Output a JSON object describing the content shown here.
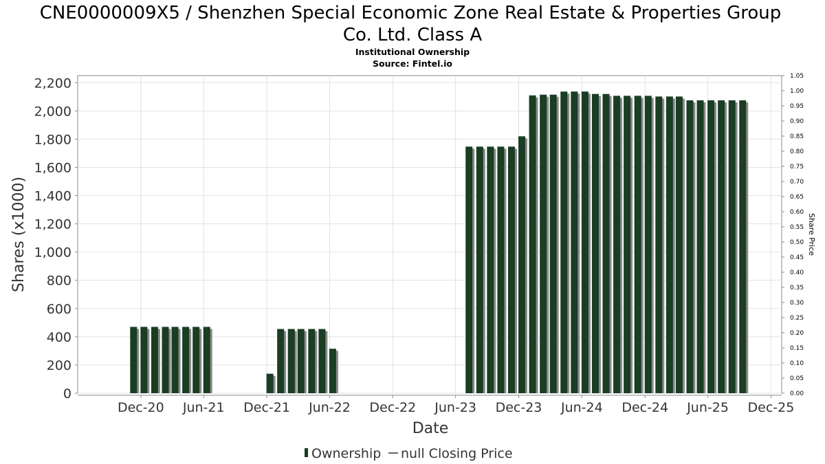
{
  "chart_data": {
    "type": "bar",
    "title_line1": "CNE0000009X5 / Shenzhen Special Economic Zone Real Estate & Properties Group",
    "title_line2": "Co. Ltd. Class A",
    "subtitle": "Institutional Ownership",
    "source": "Source: Fintel.io",
    "xlabel": "Date",
    "ylabel": "Shares (x1000)",
    "y2label": "Share Price",
    "ylim": [
      0,
      2250
    ],
    "y2lim": [
      0,
      1.05
    ],
    "grid": true,
    "x_tick_labels": [
      "Dec-20",
      "Jun-21",
      "Dec-21",
      "Jun-22",
      "Dec-22",
      "Jun-23",
      "Dec-23",
      "Jun-24",
      "Dec-24",
      "Jun-25",
      "Dec-25"
    ],
    "y_tick_labels": [
      "0",
      "200",
      "400",
      "600",
      "800",
      "1,000",
      "1,200",
      "1,400",
      "1,600",
      "1,800",
      "2,000",
      "2,200"
    ],
    "y2_tick_labels": [
      "0.00",
      "0.05",
      "0.10",
      "0.15",
      "0.20",
      "0.25",
      "0.30",
      "0.35",
      "0.40",
      "0.45",
      "0.50",
      "0.55",
      "0.60",
      "0.65",
      "0.70",
      "0.75",
      "0.80",
      "0.85",
      "0.90",
      "0.95",
      "1.00",
      "1.05"
    ],
    "legend": [
      "Ownership",
      "null Closing Price"
    ],
    "legend_position": "bottom",
    "series": [
      {
        "name": "Ownership",
        "color": "#1a3d24",
        "values": [
          {
            "date": "2020-11-10",
            "value": 470
          },
          {
            "date": "2020-12-10",
            "value": 470
          },
          {
            "date": "2021-01-10",
            "value": 470
          },
          {
            "date": "2021-02-10",
            "value": 470
          },
          {
            "date": "2021-03-10",
            "value": 470
          },
          {
            "date": "2021-04-10",
            "value": 470
          },
          {
            "date": "2021-05-10",
            "value": 470
          },
          {
            "date": "2021-06-10",
            "value": 470
          },
          {
            "date": "2021-12-10",
            "value": 138
          },
          {
            "date": "2022-01-10",
            "value": 455
          },
          {
            "date": "2022-02-10",
            "value": 455
          },
          {
            "date": "2022-03-10",
            "value": 455
          },
          {
            "date": "2022-04-10",
            "value": 455
          },
          {
            "date": "2022-05-10",
            "value": 455
          },
          {
            "date": "2022-06-10",
            "value": 315
          },
          {
            "date": "2023-07-10",
            "value": 1747
          },
          {
            "date": "2023-08-10",
            "value": 1747
          },
          {
            "date": "2023-09-10",
            "value": 1747
          },
          {
            "date": "2023-10-10",
            "value": 1747
          },
          {
            "date": "2023-11-10",
            "value": 1747
          },
          {
            "date": "2023-12-10",
            "value": 1820
          },
          {
            "date": "2024-01-10",
            "value": 2110
          },
          {
            "date": "2024-02-10",
            "value": 2115
          },
          {
            "date": "2024-03-10",
            "value": 2115
          },
          {
            "date": "2024-04-10",
            "value": 2137
          },
          {
            "date": "2024-05-10",
            "value": 2137
          },
          {
            "date": "2024-06-10",
            "value": 2137
          },
          {
            "date": "2024-07-10",
            "value": 2120
          },
          {
            "date": "2024-08-10",
            "value": 2120
          },
          {
            "date": "2024-09-10",
            "value": 2107
          },
          {
            "date": "2024-10-10",
            "value": 2107
          },
          {
            "date": "2024-11-10",
            "value": 2107
          },
          {
            "date": "2024-12-10",
            "value": 2107
          },
          {
            "date": "2025-01-10",
            "value": 2102
          },
          {
            "date": "2025-02-10",
            "value": 2102
          },
          {
            "date": "2025-03-10",
            "value": 2102
          },
          {
            "date": "2025-04-10",
            "value": 2075
          },
          {
            "date": "2025-05-10",
            "value": 2075
          },
          {
            "date": "2025-06-10",
            "value": 2075
          },
          {
            "date": "2025-07-10",
            "value": 2075
          },
          {
            "date": "2025-08-10",
            "value": 2075
          },
          {
            "date": "2025-09-10",
            "value": 2075
          }
        ]
      }
    ]
  }
}
